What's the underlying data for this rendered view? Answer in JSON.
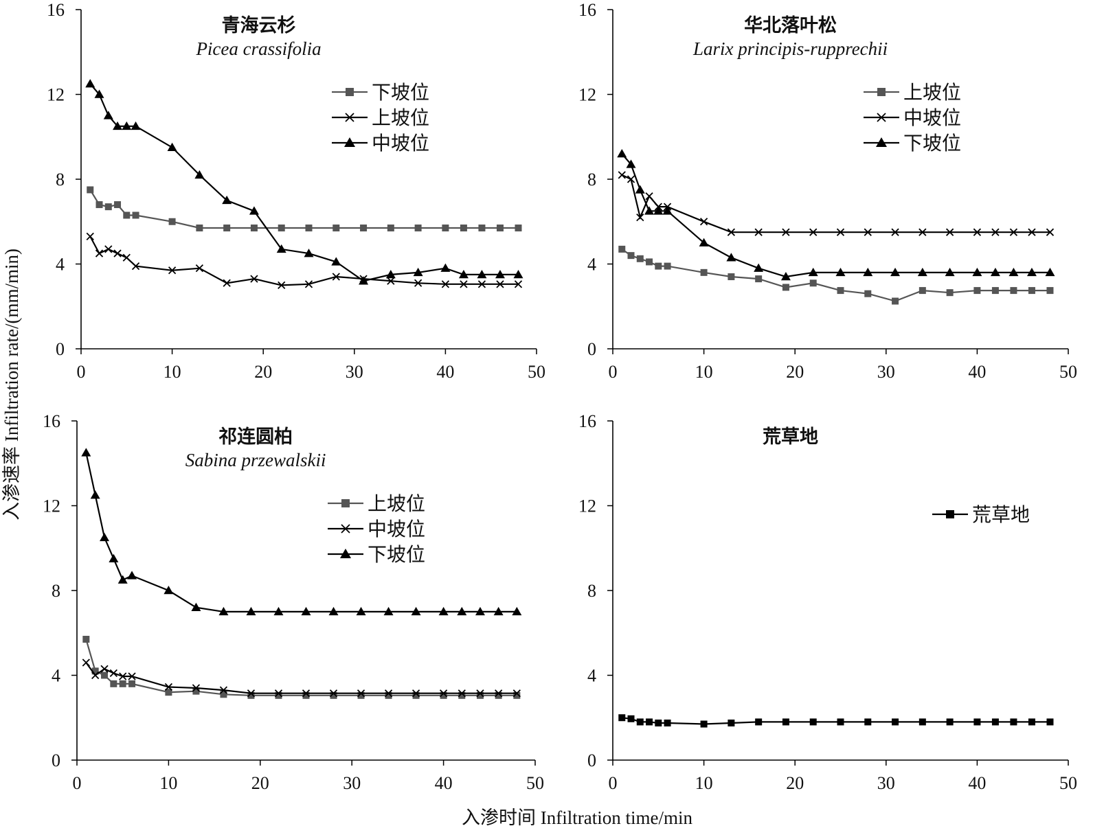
{
  "figure": {
    "xlabel": "入渗时间 Infiltration time/min",
    "ylabel": "入渗速率 Infiltration rate/(mm/min)"
  },
  "chart_data": [
    {
      "type": "line",
      "title": "青海云杉",
      "subtitle": "Picea crassifolia",
      "xlim": [
        0,
        50
      ],
      "ylim": [
        0,
        16
      ],
      "xticks": [
        0,
        10,
        20,
        30,
        40,
        50
      ],
      "yticks": [
        0,
        4,
        8,
        12,
        16
      ],
      "legend_position": "top-right",
      "series": [
        {
          "name": "下坡位",
          "marker": "square",
          "color": "#555555",
          "x": [
            1,
            2,
            3,
            4,
            5,
            6,
            10,
            13,
            16,
            19,
            22,
            25,
            28,
            31,
            34,
            37,
            40,
            42,
            44,
            46,
            48
          ],
          "y": [
            7.5,
            6.8,
            6.7,
            6.8,
            6.3,
            6.3,
            6.0,
            5.7,
            5.7,
            5.7,
            5.7,
            5.7,
            5.7,
            5.7,
            5.7,
            5.7,
            5.7,
            5.7,
            5.7,
            5.7,
            5.7
          ]
        },
        {
          "name": "上坡位",
          "marker": "cross",
          "color": "#000000",
          "x": [
            1,
            2,
            3,
            4,
            5,
            6,
            10,
            13,
            16,
            19,
            22,
            25,
            28,
            31,
            34,
            37,
            40,
            42,
            44,
            46,
            48
          ],
          "y": [
            5.3,
            4.5,
            4.7,
            4.5,
            4.3,
            3.9,
            3.7,
            3.8,
            3.1,
            3.3,
            3.0,
            3.05,
            3.4,
            3.3,
            3.2,
            3.1,
            3.05,
            3.05,
            3.05,
            3.05,
            3.05
          ]
        },
        {
          "name": "中坡位",
          "marker": "triangle",
          "color": "#000000",
          "x": [
            1,
            2,
            3,
            4,
            5,
            6,
            10,
            13,
            16,
            19,
            22,
            25,
            28,
            31,
            34,
            37,
            40,
            42,
            44,
            46,
            48
          ],
          "y": [
            12.5,
            12.0,
            11.0,
            10.5,
            10.5,
            10.5,
            9.5,
            8.2,
            7.0,
            6.5,
            4.7,
            4.5,
            4.1,
            3.2,
            3.5,
            3.6,
            3.8,
            3.5,
            3.5,
            3.5,
            3.5
          ]
        }
      ]
    },
    {
      "type": "line",
      "title": "华北落叶松",
      "subtitle": "Larix principis-rupprechii",
      "xlim": [
        0,
        50
      ],
      "ylim": [
        0,
        16
      ],
      "xticks": [
        0,
        10,
        20,
        30,
        40,
        50
      ],
      "yticks": [
        0,
        4,
        8,
        12,
        16
      ],
      "legend_position": "top-right",
      "series": [
        {
          "name": "上坡位",
          "marker": "square",
          "color": "#555555",
          "x": [
            1,
            2,
            3,
            4,
            5,
            6,
            10,
            13,
            16,
            19,
            22,
            25,
            28,
            31,
            34,
            37,
            40,
            42,
            44,
            46,
            48
          ],
          "y": [
            4.7,
            4.4,
            4.25,
            4.1,
            3.9,
            3.9,
            3.6,
            3.4,
            3.3,
            2.9,
            3.1,
            2.75,
            2.6,
            2.25,
            2.75,
            2.65,
            2.75,
            2.75,
            2.75,
            2.75,
            2.75
          ]
        },
        {
          "name": "中坡位",
          "marker": "cross",
          "color": "#000000",
          "x": [
            1,
            2,
            3,
            4,
            5,
            6,
            10,
            13,
            16,
            19,
            22,
            25,
            28,
            31,
            34,
            37,
            40,
            42,
            44,
            46,
            48
          ],
          "y": [
            8.2,
            8.0,
            6.2,
            7.2,
            6.7,
            6.7,
            6.0,
            5.5,
            5.5,
            5.5,
            5.5,
            5.5,
            5.5,
            5.5,
            5.5,
            5.5,
            5.5,
            5.5,
            5.5,
            5.5,
            5.5
          ]
        },
        {
          "name": "下坡位",
          "marker": "triangle",
          "color": "#000000",
          "x": [
            1,
            2,
            3,
            4,
            5,
            6,
            10,
            13,
            16,
            19,
            22,
            25,
            28,
            31,
            34,
            37,
            40,
            42,
            44,
            46,
            48
          ],
          "y": [
            9.2,
            8.7,
            7.5,
            6.5,
            6.5,
            6.5,
            5.0,
            4.3,
            3.8,
            3.4,
            3.6,
            3.6,
            3.6,
            3.6,
            3.6,
            3.6,
            3.6,
            3.6,
            3.6,
            3.6,
            3.6
          ]
        }
      ]
    },
    {
      "type": "line",
      "title": "祁连圆柏",
      "subtitle": "Sabina przewalskii",
      "xlim": [
        0,
        50
      ],
      "ylim": [
        0,
        16
      ],
      "xticks": [
        0,
        10,
        20,
        30,
        40,
        50
      ],
      "yticks": [
        0,
        4,
        8,
        12,
        16
      ],
      "legend_position": "top-right",
      "series": [
        {
          "name": "上坡位",
          "marker": "square",
          "color": "#555555",
          "x": [
            1,
            2,
            3,
            4,
            5,
            6,
            10,
            13,
            16,
            19,
            22,
            25,
            28,
            31,
            34,
            37,
            40,
            42,
            44,
            46,
            48
          ],
          "y": [
            5.7,
            4.2,
            4.0,
            3.6,
            3.6,
            3.6,
            3.2,
            3.25,
            3.1,
            3.05,
            3.05,
            3.05,
            3.05,
            3.05,
            3.05,
            3.05,
            3.05,
            3.05,
            3.05,
            3.05,
            3.05
          ]
        },
        {
          "name": "中坡位",
          "marker": "cross",
          "color": "#000000",
          "x": [
            1,
            2,
            3,
            4,
            5,
            6,
            10,
            13,
            16,
            19,
            22,
            25,
            28,
            31,
            34,
            37,
            40,
            42,
            44,
            46,
            48
          ],
          "y": [
            4.6,
            4.0,
            4.3,
            4.1,
            3.95,
            3.95,
            3.45,
            3.4,
            3.3,
            3.15,
            3.15,
            3.15,
            3.15,
            3.15,
            3.15,
            3.15,
            3.15,
            3.15,
            3.15,
            3.15,
            3.15
          ]
        },
        {
          "name": "下坡位",
          "marker": "triangle",
          "color": "#000000",
          "x": [
            1,
            2,
            3,
            4,
            5,
            6,
            10,
            13,
            16,
            19,
            22,
            25,
            28,
            31,
            34,
            37,
            40,
            42,
            44,
            46,
            48
          ],
          "y": [
            14.5,
            12.5,
            10.5,
            9.5,
            8.5,
            8.7,
            8.0,
            7.2,
            7.0,
            7.0,
            7.0,
            7.0,
            7.0,
            7.0,
            7.0,
            7.0,
            7.0,
            7.0,
            7.0,
            7.0,
            7.0
          ]
        }
      ]
    },
    {
      "type": "line",
      "title": "荒草地",
      "subtitle": "",
      "xlim": [
        0,
        50
      ],
      "ylim": [
        0,
        16
      ],
      "xticks": [
        0,
        10,
        20,
        30,
        40,
        50
      ],
      "yticks": [
        0,
        4,
        8,
        12,
        16
      ],
      "legend_position": "top-right",
      "series": [
        {
          "name": "荒草地",
          "marker": "square",
          "color": "#000000",
          "x": [
            1,
            2,
            3,
            4,
            5,
            6,
            10,
            13,
            16,
            19,
            22,
            25,
            28,
            31,
            34,
            37,
            40,
            42,
            44,
            46,
            48
          ],
          "y": [
            2.0,
            1.95,
            1.8,
            1.8,
            1.75,
            1.75,
            1.7,
            1.75,
            1.8,
            1.8,
            1.8,
            1.8,
            1.8,
            1.8,
            1.8,
            1.8,
            1.8,
            1.8,
            1.8,
            1.8,
            1.8
          ]
        }
      ]
    }
  ]
}
